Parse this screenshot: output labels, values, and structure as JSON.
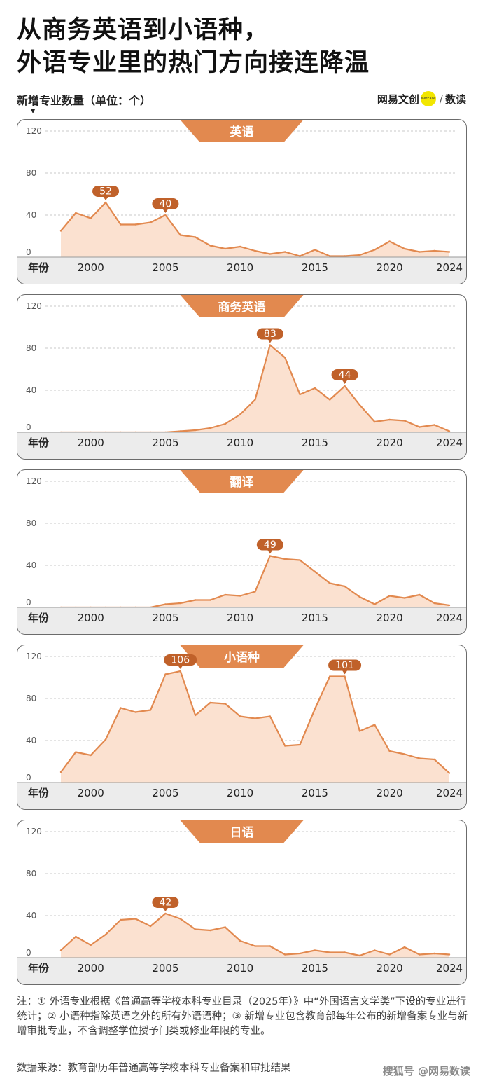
{
  "title_line1": "从商务英语到小语种，",
  "title_line2": "外语专业里的热门方向接连降温",
  "subtitle": "新增专业数量（单位：个）",
  "brand": {
    "part1": "网易文创",
    "dot_text": "NetEase",
    "part2": "数读",
    "separator": "/"
  },
  "footnote": "注：① 外语专业根据《普通高等学校本科专业目录（2025年）》中“外国语言文学类”下设的专业进行统计；② 小语种指除英语之外的所有外语语种；③ 新增专业包含教育部每年公布的新增备案专业与新增审批专业，不含调整学位授予门类或修业年限的专业。",
  "source": "数据来源：教育部历年普通高等学校本科专业备案和审批结果",
  "watermark": "搜狐号 @网易数读",
  "colors": {
    "line": "#e2894f",
    "fill": "#fbe1d0",
    "tab": "#e2894f",
    "callout": "#c0612a",
    "grid": "#c8c8c8"
  },
  "chart_data": [
    {
      "type": "area",
      "title": "英语",
      "xlabel": "年份",
      "x": [
        1998,
        1999,
        2000,
        2001,
        2002,
        2003,
        2004,
        2005,
        2006,
        2007,
        2008,
        2009,
        2010,
        2011,
        2012,
        2013,
        2014,
        2015,
        2016,
        2017,
        2018,
        2019,
        2020,
        2021,
        2022,
        2023,
        2024
      ],
      "values": [
        25,
        42,
        37,
        52,
        31,
        31,
        33,
        40,
        21,
        19,
        11,
        8,
        10,
        6,
        3,
        5,
        1,
        7,
        1,
        1,
        2,
        7,
        15,
        8,
        5,
        6,
        5
      ],
      "ylim": [
        0,
        120
      ],
      "yticks": [
        0,
        40,
        80,
        120
      ],
      "xticks": [
        2000,
        2005,
        2010,
        2015,
        2020,
        2024
      ],
      "callouts": [
        {
          "x": 2001,
          "label": "52"
        },
        {
          "x": 2005,
          "label": "40"
        }
      ]
    },
    {
      "type": "area",
      "title": "商务英语",
      "xlabel": "年份",
      "x": [
        1998,
        1999,
        2000,
        2001,
        2002,
        2003,
        2004,
        2005,
        2006,
        2007,
        2008,
        2009,
        2010,
        2011,
        2012,
        2013,
        2014,
        2015,
        2016,
        2017,
        2018,
        2019,
        2020,
        2021,
        2022,
        2023,
        2024
      ],
      "values": [
        0,
        0,
        0,
        0,
        0,
        0,
        0,
        0,
        1,
        2,
        4,
        8,
        17,
        31,
        83,
        71,
        36,
        42,
        31,
        44,
        26,
        10,
        12,
        11,
        5,
        7,
        1
      ],
      "ylim": [
        0,
        120
      ],
      "yticks": [
        0,
        40,
        80,
        120
      ],
      "xticks": [
        2000,
        2005,
        2010,
        2015,
        2020,
        2024
      ],
      "callouts": [
        {
          "x": 2012,
          "label": "83"
        },
        {
          "x": 2017,
          "label": "44"
        }
      ]
    },
    {
      "type": "area",
      "title": "翻译",
      "xlabel": "年份",
      "x": [
        1998,
        1999,
        2000,
        2001,
        2002,
        2003,
        2004,
        2005,
        2006,
        2007,
        2008,
        2009,
        2010,
        2011,
        2012,
        2013,
        2014,
        2015,
        2016,
        2017,
        2018,
        2019,
        2020,
        2021,
        2022,
        2023,
        2024
      ],
      "values": [
        0,
        0,
        0,
        0,
        0,
        0,
        0,
        3,
        4,
        7,
        7,
        12,
        11,
        15,
        49,
        46,
        45,
        34,
        23,
        20,
        10,
        3,
        11,
        9,
        12,
        4,
        2
      ],
      "ylim": [
        0,
        120
      ],
      "yticks": [
        0,
        40,
        80,
        120
      ],
      "xticks": [
        2000,
        2005,
        2010,
        2015,
        2020,
        2024
      ],
      "callouts": [
        {
          "x": 2012,
          "label": "49"
        }
      ]
    },
    {
      "type": "area",
      "title": "小语种",
      "xlabel": "年份",
      "x": [
        1998,
        1999,
        2000,
        2001,
        2002,
        2003,
        2004,
        2005,
        2006,
        2007,
        2008,
        2009,
        2010,
        2011,
        2012,
        2013,
        2014,
        2015,
        2016,
        2017,
        2018,
        2019,
        2020,
        2021,
        2022,
        2023,
        2024
      ],
      "values": [
        10,
        29,
        26,
        41,
        71,
        67,
        69,
        103,
        106,
        64,
        76,
        75,
        63,
        61,
        63,
        35,
        36,
        70,
        101,
        101,
        49,
        55,
        30,
        27,
        23,
        22,
        9
      ],
      "ylim": [
        0,
        120
      ],
      "yticks": [
        0,
        40,
        80,
        120
      ],
      "xticks": [
        2000,
        2005,
        2010,
        2015,
        2020,
        2024
      ],
      "callouts": [
        {
          "x": 2006,
          "label": "106"
        },
        {
          "x": 2017,
          "label": "101"
        }
      ]
    },
    {
      "type": "area",
      "title": "日语",
      "xlabel": "年份",
      "x": [
        1998,
        1999,
        2000,
        2001,
        2002,
        2003,
        2004,
        2005,
        2006,
        2007,
        2008,
        2009,
        2010,
        2011,
        2012,
        2013,
        2014,
        2015,
        2016,
        2017,
        2018,
        2019,
        2020,
        2021,
        2022,
        2023,
        2024
      ],
      "values": [
        7,
        20,
        12,
        22,
        36,
        37,
        30,
        42,
        37,
        27,
        26,
        29,
        16,
        11,
        11,
        3,
        4,
        7,
        5,
        5,
        2,
        7,
        3,
        10,
        3,
        4,
        3
      ],
      "ylim": [
        0,
        120
      ],
      "yticks": [
        0,
        40,
        80,
        120
      ],
      "xticks": [
        2000,
        2005,
        2010,
        2015,
        2020,
        2024
      ],
      "callouts": [
        {
          "x": 2005,
          "label": "42"
        }
      ]
    }
  ]
}
